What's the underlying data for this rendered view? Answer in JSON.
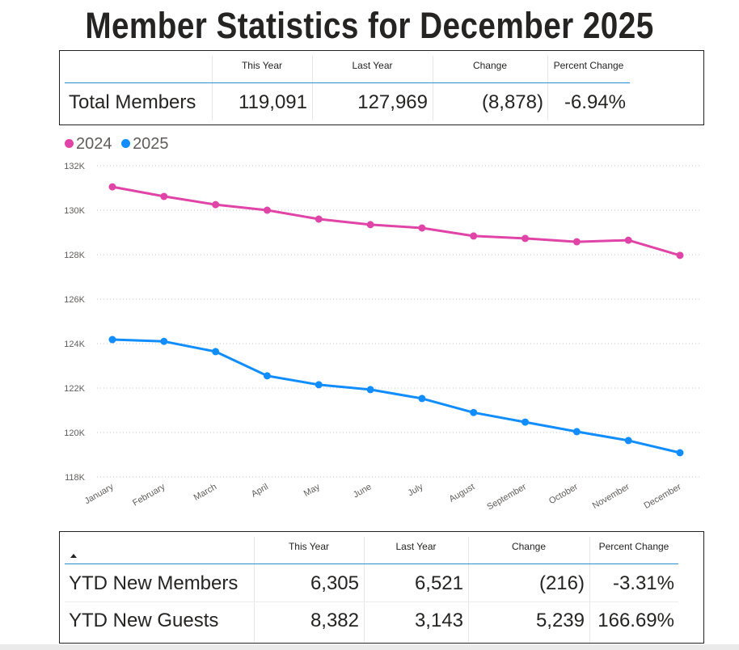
{
  "page": {
    "title": "Member Statistics for December 2025"
  },
  "summary_table": {
    "columns": [
      "This Year",
      "Last Year",
      "Change",
      "Percent Change"
    ],
    "rows": [
      {
        "label": "Total Members",
        "this_year": "119,091",
        "last_year": "127,969",
        "change": "(8,878)",
        "percent_change": "-6.94%"
      }
    ]
  },
  "ytd_table": {
    "sort_indicator": "sort-ascending-icon",
    "columns": [
      "This Year",
      "Last Year",
      "Change",
      "Percent Change"
    ],
    "rows": [
      {
        "label": "YTD New Members",
        "this_year": "6,305",
        "last_year": "6,521",
        "change": "(216)",
        "percent_change": "-3.31%"
      },
      {
        "label": "YTD New Guests",
        "this_year": "8,382",
        "last_year": "3,143",
        "change": "5,239",
        "percent_change": "166.69%"
      }
    ]
  },
  "chart_data": {
    "type": "line",
    "title": "",
    "xlabel": "",
    "ylabel": "",
    "categories": [
      "January",
      "February",
      "March",
      "April",
      "May",
      "June",
      "July",
      "August",
      "September",
      "October",
      "November",
      "December"
    ],
    "series": [
      {
        "name": "2024",
        "color": "#e044a7",
        "values": [
          131050,
          130620,
          130250,
          130000,
          129600,
          129350,
          129200,
          128840,
          128730,
          128580,
          128650,
          127969
        ]
      },
      {
        "name": "2025",
        "color": "#118dff",
        "values": [
          124180,
          124100,
          123640,
          122550,
          122150,
          121930,
          121530,
          120900,
          120470,
          120040,
          119640,
          119091
        ]
      }
    ],
    "ylim": [
      118000,
      132000
    ],
    "yticks": [
      118000,
      120000,
      122000,
      124000,
      126000,
      128000,
      130000,
      132000
    ],
    "ytick_labels": [
      "118K",
      "120K",
      "122K",
      "124K",
      "126K",
      "128K",
      "130K",
      "132K"
    ],
    "grid": true,
    "legend_position": "top-left"
  }
}
